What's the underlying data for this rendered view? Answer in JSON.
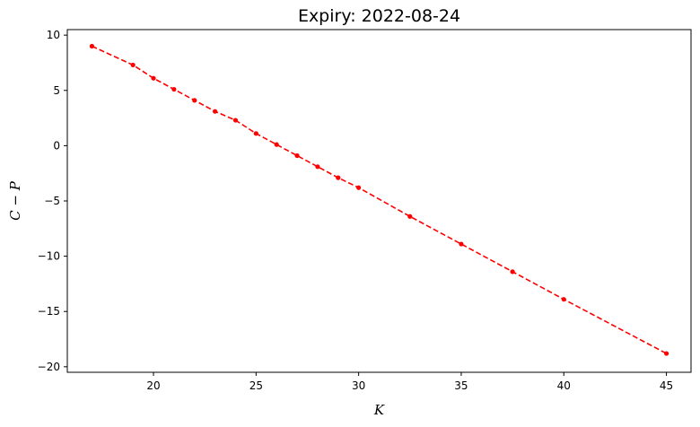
{
  "chart_data": {
    "type": "line",
    "title": "Expiry: 2022-08-24",
    "xlabel": "K",
    "ylabel": "C − P",
    "xlim": [
      15.8,
      46.2
    ],
    "ylim": [
      -20.5,
      10.5
    ],
    "xticks": [
      20,
      25,
      30,
      35,
      40,
      45
    ],
    "yticks": [
      -20,
      -15,
      -10,
      -5,
      0,
      5,
      10
    ],
    "grid": false,
    "series": [
      {
        "color": "#ff0000",
        "line_style": "dashed",
        "marker": "circle",
        "x": [
          17,
          19,
          20,
          21,
          22,
          23,
          24,
          25,
          26,
          27,
          28,
          29,
          30,
          32.5,
          35,
          37.5,
          40,
          45
        ],
        "y": [
          9.0,
          7.3,
          6.1,
          5.1,
          4.1,
          3.1,
          2.3,
          1.1,
          0.1,
          -0.9,
          -1.9,
          -2.9,
          -3.8,
          -6.4,
          -8.9,
          -11.4,
          -13.9,
          -18.8
        ]
      }
    ]
  }
}
